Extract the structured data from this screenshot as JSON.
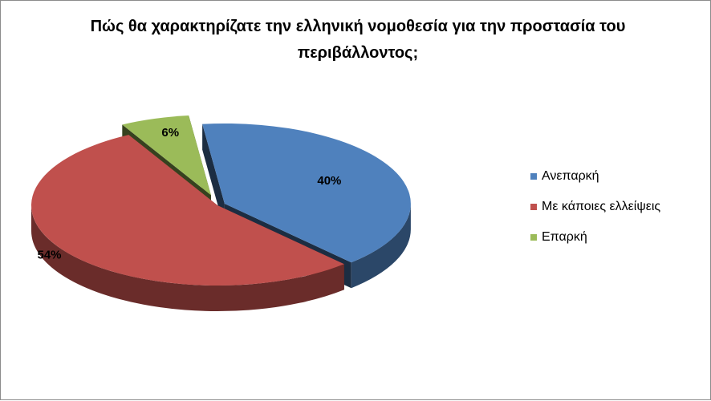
{
  "chart_data": {
    "type": "pie",
    "title": "Πώς θα χαρακτηρίζατε την ελληνική νομοθεσία για την προστασία του περιβάλλοντος;",
    "categories": [
      "Ανεπαρκή",
      "Με κάποιες ελλείψεις",
      "Επαρκή"
    ],
    "values": [
      40,
      54,
      6
    ],
    "data_labels": [
      "40%",
      "54%",
      "6%"
    ],
    "colors": [
      "#4f81bd",
      "#c0504d",
      "#9bbb59"
    ],
    "style": "3d-exploded",
    "legend_position": "right"
  }
}
